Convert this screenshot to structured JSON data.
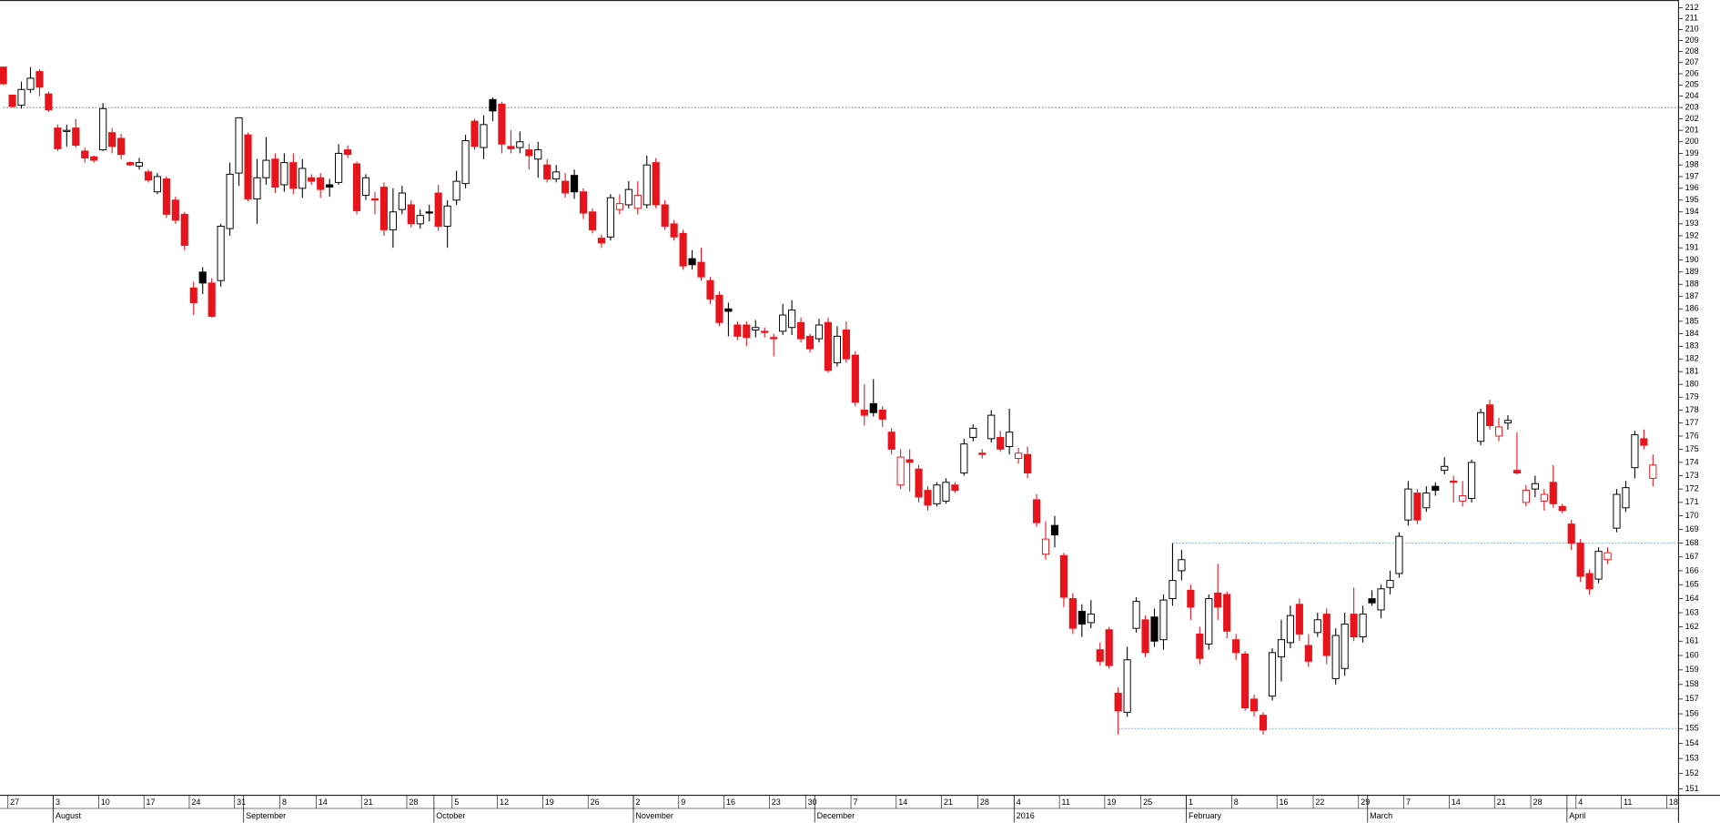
{
  "chart_data": {
    "type": "candlestick",
    "log_y": true,
    "ylim": [
      151,
      212
    ],
    "yticks": [
      151,
      152,
      153,
      154,
      155,
      156,
      157,
      158,
      159,
      160,
      161,
      162,
      163,
      164,
      165,
      166,
      167,
      168,
      169,
      170,
      171,
      172,
      173,
      174,
      175,
      176,
      177,
      178,
      179,
      180,
      181,
      182,
      183,
      184,
      185,
      186,
      187,
      188,
      189,
      190,
      191,
      192,
      193,
      194,
      195,
      196,
      197,
      198,
      199,
      200,
      201,
      202,
      203,
      204,
      205,
      206,
      207,
      208,
      209,
      210,
      211,
      212
    ],
    "up_color": "#ffffff",
    "down_color": "#e8141c",
    "edge_color": "#000000",
    "open": [
      206.6,
      204.1,
      203.2,
      204.6,
      206.2,
      204.2,
      201.2,
      200.9,
      201.2,
      199.2,
      198.7,
      199.3,
      200.8,
      200.3,
      198.2,
      197.9,
      197.4,
      195.7,
      196.8,
      195,
      193.8,
      187.7,
      189,
      188.1,
      188.3,
      192.6,
      197.3,
      200.6,
      195.1,
      196.9,
      198.5,
      196.3,
      198.2,
      196,
      196.9,
      196.9,
      196.3,
      196.5,
      199.3,
      198.1,
      195.4,
      195.1,
      196.1,
      192.5,
      194.2,
      194.6,
      193,
      194,
      195.6,
      192.8,
      195,
      196.4,
      201.8,
      199.5,
      203.7,
      203.3,
      199.6,
      199.5,
      199.3,
      198.5,
      198,
      196.8,
      196.6,
      197.1,
      195.7,
      194,
      191.8,
      191.9,
      194.2,
      194.6,
      194.3,
      194.6,
      198.2,
      194.6,
      193,
      192.2,
      190.1,
      189.8,
      188.3,
      187.1,
      186,
      184.7,
      184.7,
      184.3,
      184.2,
      183.7,
      184.2,
      184.5,
      184.9,
      183.8,
      183.6,
      184.9,
      181.7,
      184.3,
      182.3,
      178,
      178.5,
      178,
      176.3,
      172.3,
      174.2,
      173.5,
      171.9,
      170.9,
      171.1,
      172.3,
      173.2,
      175.9,
      174.7,
      175.8,
      175.9,
      175.2,
      174.3,
      174.6,
      171.2,
      167.2,
      169.3,
      167.1,
      164,
      163.1,
      162.3,
      160.4,
      161.8,
      157.4,
      156.1,
      161.9,
      162.5,
      162.7,
      161.1,
      164,
      166,
      164.6,
      161.5,
      160.8,
      164.4,
      164.3,
      161.1,
      160.1,
      157,
      155.9,
      157.2,
      159.9,
      160.9,
      163.6,
      160.7,
      161.6,
      162.9,
      158.4,
      159.1,
      162.9,
      161.3,
      164,
      163.2,
      164.8,
      165.8,
      169.7,
      171.7,
      170.6,
      172.2,
      173.4,
      172.6,
      171.1,
      171.3,
      175.6,
      178.4,
      176,
      177,
      173.4,
      171,
      172,
      171.1,
      172.5,
      170.7,
      169.4,
      168,
      165.8,
      165.4,
      166.8,
      169.1,
      170.6,
      173.6,
      175.8,
      172.8
    ],
    "high": [
      206.6,
      204.1,
      205.3,
      206.6,
      206.4,
      204.4,
      201.5,
      201.5,
      202,
      199.5,
      198.8,
      203.4,
      201.2,
      200.7,
      198.3,
      198.6,
      197.6,
      197.3,
      197,
      195.3,
      194,
      188.2,
      189.4,
      188.5,
      193,
      198.2,
      202.1,
      200.8,
      198.5,
      200.4,
      199,
      199,
      199,
      198.5,
      197.2,
      197.3,
      196.8,
      199.8,
      199.7,
      198.3,
      197.2,
      195.7,
      196.5,
      196,
      196.2,
      195,
      194.2,
      194.6,
      196.3,
      195,
      197.5,
      200.6,
      202,
      202.3,
      203.9,
      203.5,
      201,
      200.9,
      199.8,
      200,
      198.5,
      198,
      197.3,
      197.6,
      196,
      194.3,
      192.1,
      195.5,
      195.5,
      196.6,
      196.6,
      198.8,
      198.6,
      195,
      193.3,
      192.5,
      190.8,
      191,
      188.6,
      187.4,
      186.5,
      185,
      185,
      185.1,
      184.5,
      184,
      186.4,
      186.7,
      185.3,
      184,
      185.2,
      185.3,
      184.6,
      185,
      182.6,
      180,
      180.4,
      178.3,
      176.6,
      175,
      175,
      173.8,
      172.2,
      172.5,
      172.8,
      172.5,
      175.8,
      176.9,
      175,
      178,
      176.4,
      178.1,
      175.1,
      175.2,
      171.6,
      169.6,
      170,
      167.3,
      164.4,
      163.6,
      163.9,
      160.9,
      162,
      157.8,
      160.6,
      164.1,
      162.8,
      163.3,
      164.3,
      168,
      167.5,
      165,
      162,
      164.3,
      166.5,
      164.5,
      161.5,
      160.3,
      157.3,
      156.1,
      160.5,
      162.5,
      163.5,
      164,
      161.5,
      163,
      163.3,
      161.9,
      163,
      164.8,
      163.5,
      164.6,
      165,
      166,
      168.8,
      172.6,
      172,
      172.2,
      172.5,
      174.4,
      173,
      172.6,
      174.2,
      178.1,
      178.8,
      177.4,
      177.6,
      176.3,
      172.3,
      173,
      172,
      173.8,
      170.9,
      169.7,
      168.3,
      166.1,
      167.7,
      167.7,
      172,
      172.6,
      176.4,
      176.5,
      174.6
    ],
    "low": [
      205,
      203,
      202.9,
      204.3,
      204,
      202.6,
      199.2,
      199.6,
      199.5,
      198.2,
      198.2,
      199.2,
      199,
      198.5,
      197.9,
      197.6,
      196.5,
      195.5,
      193.5,
      193,
      190.8,
      185.5,
      187.2,
      185.3,
      187.8,
      192,
      196.2,
      194.9,
      193,
      196.3,
      195.6,
      195.7,
      195.5,
      195.2,
      196.3,
      195.2,
      195.3,
      196.3,
      198.6,
      193.8,
      195,
      193.8,
      192,
      191,
      193.8,
      192.7,
      192.6,
      193.2,
      192.4,
      191,
      194.6,
      196,
      199.3,
      198.5,
      201.8,
      199,
      199,
      199,
      197.6,
      196.9,
      196.5,
      196.5,
      195.2,
      195.1,
      193.4,
      192.2,
      191,
      191.6,
      193.8,
      194.3,
      193.8,
      194.3,
      194.3,
      192.5,
      191.6,
      189.2,
      189.2,
      188.3,
      186.4,
      184.6,
      183.8,
      183.5,
      183,
      183.7,
      183.7,
      182.2,
      183.9,
      183.9,
      183.3,
      182.5,
      183.3,
      180.9,
      181.4,
      181.7,
      178.3,
      176.8,
      177.5,
      176.7,
      174.6,
      172,
      171.8,
      171,
      170.4,
      170.7,
      170.9,
      171.7,
      173,
      175.6,
      174.3,
      175.5,
      174.8,
      174.6,
      173.9,
      172.8,
      169.2,
      166.8,
      167.7,
      163.4,
      161.5,
      161.3,
      161.9,
      159.3,
      159.1,
      154.6,
      155.8,
      161.6,
      159.9,
      160.6,
      160.4,
      163.5,
      165.3,
      162.5,
      159.4,
      160.4,
      162.5,
      161.2,
      159.7,
      156.2,
      155.8,
      154.6,
      156.9,
      158.2,
      160.5,
      161,
      159.2,
      161.3,
      159.4,
      158,
      158.6,
      161,
      160.9,
      163.5,
      162.6,
      164.3,
      165.5,
      169.3,
      169.4,
      170.3,
      171.5,
      173.1,
      171,
      170.7,
      171,
      175.3,
      176.5,
      175.6,
      176.5,
      173.1,
      170.7,
      171.4,
      170.4,
      170.6,
      170.2,
      167.5,
      165.2,
      164.3,
      165.1,
      166.5,
      168.8,
      170.3,
      172.8,
      175,
      172.2
    ],
    "close": [
      205.1,
      203.1,
      204.6,
      205.6,
      204.8,
      202.8,
      199.4,
      201,
      199.7,
      198.6,
      198.4,
      202.9,
      199.6,
      198.9,
      198,
      198.2,
      196.7,
      197,
      193.8,
      193.3,
      191.2,
      186.5,
      188.1,
      185.4,
      192.8,
      197.2,
      202.1,
      195.1,
      196.9,
      198.4,
      196.1,
      198.2,
      196,
      197.7,
      196.6,
      195.9,
      196.1,
      199,
      198.9,
      194.1,
      196.9,
      195,
      192.5,
      194,
      195.6,
      193,
      193.7,
      193.9,
      192.8,
      194.5,
      196.6,
      200.1,
      199.6,
      201.5,
      202.7,
      199.8,
      199.4,
      200,
      198.8,
      199.3,
      196.8,
      197.4,
      195.6,
      195.7,
      193.9,
      192.5,
      191.4,
      195.2,
      194.7,
      195.9,
      195.4,
      198,
      194.6,
      192.8,
      191.9,
      189.5,
      189.6,
      188.6,
      186.8,
      184.9,
      185.8,
      183.8,
      183.7,
      184.5,
      184.1,
      183.6,
      185.5,
      185.9,
      183.6,
      182.8,
      184.7,
      181.1,
      183.8,
      182,
      178.6,
      177.6,
      177.8,
      177.3,
      175,
      174.4,
      174,
      171.4,
      170.8,
      172.3,
      172.5,
      171.9,
      175.4,
      176.6,
      174.6,
      177.6,
      175,
      176.3,
      174.7,
      173.2,
      169.5,
      168.3,
      168.6,
      164.1,
      161.9,
      162.2,
      162.9,
      159.6,
      159.3,
      156.2,
      159.7,
      163.8,
      160.2,
      161,
      163.9,
      165.3,
      166.8,
      163.4,
      159.8,
      164,
      163.4,
      161.7,
      160.2,
      156.4,
      156.2,
      154.9,
      160.2,
      161.1,
      162.8,
      161.5,
      159.6,
      162.5,
      160,
      161.4,
      162.2,
      161.3,
      162.9,
      163.7,
      164.7,
      165.3,
      168.5,
      172,
      169.7,
      171.7,
      171.9,
      173.7,
      172.5,
      171.5,
      174,
      177.8,
      176.8,
      176.7,
      177.2,
      173.2,
      171.9,
      172.4,
      171.6,
      170.9,
      170.4,
      168,
      165.6,
      164.7,
      167.4,
      167.3,
      171.6,
      172.1,
      176.1,
      175.3,
      173.8
    ],
    "xticks": [
      {
        "value": 1,
        "label": "27"
      },
      {
        "value": 6,
        "label": "3"
      },
      {
        "value": 11,
        "label": "10"
      },
      {
        "value": 16,
        "label": "17"
      },
      {
        "value": 21,
        "label": "24"
      },
      {
        "value": 26,
        "label": "31"
      },
      {
        "value": 31,
        "label": "8"
      },
      {
        "value": 35,
        "label": "14"
      },
      {
        "value": 40,
        "label": "21"
      },
      {
        "value": 45,
        "label": "28"
      },
      {
        "value": 50,
        "label": "5"
      },
      {
        "value": 55,
        "label": "12"
      },
      {
        "value": 60,
        "label": "19"
      },
      {
        "value": 65,
        "label": "26"
      },
      {
        "value": 70,
        "label": "2"
      },
      {
        "value": 75,
        "label": "9"
      },
      {
        "value": 80,
        "label": "16"
      },
      {
        "value": 85,
        "label": "23"
      },
      {
        "value": 89,
        "label": "30"
      },
      {
        "value": 94,
        "label": "7"
      },
      {
        "value": 99,
        "label": "14"
      },
      {
        "value": 104,
        "label": "21"
      },
      {
        "value": 108,
        "label": "28"
      },
      {
        "value": 112,
        "label": "4"
      },
      {
        "value": 117,
        "label": "11"
      },
      {
        "value": 122,
        "label": "19"
      },
      {
        "value": 126,
        "label": "25"
      },
      {
        "value": 131,
        "label": "1"
      },
      {
        "value": 136,
        "label": "8"
      },
      {
        "value": 141,
        "label": "16"
      },
      {
        "value": 145,
        "label": "22"
      },
      {
        "value": 150,
        "label": "29"
      },
      {
        "value": 155,
        "label": "7"
      },
      {
        "value": 160,
        "label": "14"
      },
      {
        "value": 165,
        "label": "21"
      },
      {
        "value": 169,
        "label": "28"
      },
      {
        "value": 174,
        "label": "4"
      },
      {
        "value": 179,
        "label": "11"
      },
      {
        "value": 184,
        "label": "18"
      }
    ],
    "month_ticks": [
      {
        "value": 6,
        "label": "August"
      },
      {
        "value": 27,
        "label": "September"
      },
      {
        "value": 48,
        "label": "October"
      },
      {
        "value": 70,
        "label": "November"
      },
      {
        "value": 90,
        "label": "December"
      },
      {
        "value": 112,
        "label": "2016"
      },
      {
        "value": 131,
        "label": "February"
      },
      {
        "value": 151,
        "label": "March"
      },
      {
        "value": 173,
        "label": "April"
      }
    ],
    "reference_lines": [
      {
        "value": 203,
        "from": 0,
        "color": "#7f7f7f"
      },
      {
        "value": 168,
        "from": 129,
        "color": "#7fa7d4"
      },
      {
        "value": 155,
        "from": 123,
        "color": "#7fa7d4"
      }
    ]
  }
}
